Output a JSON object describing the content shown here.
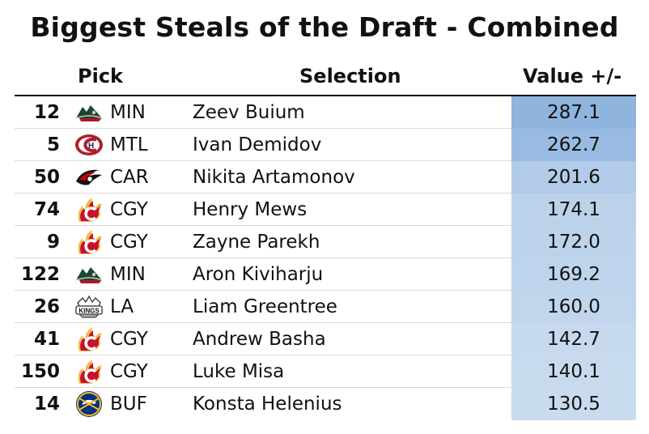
{
  "title": "Biggest Steals of the Draft - Combined",
  "headers": {
    "pick": "Pick",
    "selection": "Selection",
    "value": "Value +/-"
  },
  "chart_data": {
    "type": "table",
    "columns": [
      "Pick",
      "Team",
      "Selection",
      "Value +/-"
    ],
    "rows": [
      {
        "pick": "12",
        "team": "MIN",
        "logo": "minnesota-wild-logo-icon",
        "player": "Zeev Buium",
        "value": "287.1",
        "color": "#8fb4de"
      },
      {
        "pick": "5",
        "team": "MTL",
        "logo": "montreal-canadiens-logo-icon",
        "player": "Ivan Demidov",
        "value": "262.7",
        "color": "#99bbe1"
      },
      {
        "pick": "50",
        "team": "CAR",
        "logo": "carolina-hurricanes-logo-icon",
        "player": "Nikita Artamonov",
        "value": "201.6",
        "color": "#b2cbe8"
      },
      {
        "pick": "74",
        "team": "CGY",
        "logo": "calgary-flames-logo-icon",
        "player": "Henry Mews",
        "value": "174.1",
        "color": "#bcd2eb"
      },
      {
        "pick": "9",
        "team": "CGY",
        "logo": "calgary-flames-logo-icon",
        "player": "Zayne Parekh",
        "value": "172.0",
        "color": "#bdd3eb"
      },
      {
        "pick": "122",
        "team": "MIN",
        "logo": "minnesota-wild-logo-icon",
        "player": "Aron Kiviharju",
        "value": "169.2",
        "color": "#bed4ec"
      },
      {
        "pick": "26",
        "team": "LA",
        "logo": "los-angeles-kings-logo-icon",
        "player": "Liam Greentree",
        "value": "160.0",
        "color": "#c1d6ec"
      },
      {
        "pick": "41",
        "team": "CGY",
        "logo": "calgary-flames-logo-icon",
        "player": "Andrew Basha",
        "value": "142.7",
        "color": "#c6d9ee"
      },
      {
        "pick": "150",
        "team": "CGY",
        "logo": "calgary-flames-logo-icon",
        "player": "Luke Misa",
        "value": "140.1",
        "color": "#c7daee"
      },
      {
        "pick": "14",
        "team": "BUF",
        "logo": "buffalo-sabres-logo-icon",
        "player": "Konsta Helenius",
        "value": "130.5",
        "color": "#c9dbef"
      }
    ]
  }
}
